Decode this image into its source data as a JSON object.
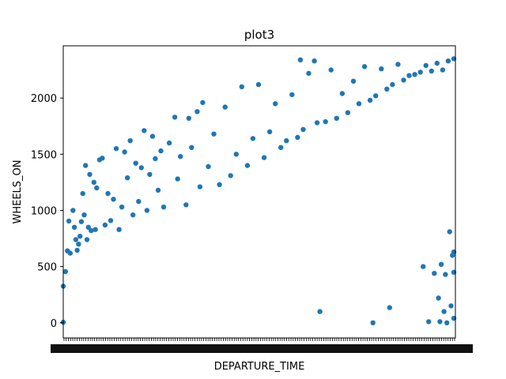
{
  "chart_data": {
    "type": "scatter",
    "title": "plot3",
    "xlabel": "DEPARTURE_TIME",
    "ylabel": "WHEELS_ON",
    "ylim": [
      -135,
      2465
    ],
    "y_ticks": [
      0,
      500,
      1000,
      1500,
      2000
    ],
    "x_range": [
      0,
      2359
    ],
    "x_tick_labels_illegible": true,
    "marker_color": "#1f77b4",
    "grid": false,
    "legend": "none",
    "points": [
      [
        0,
        5
      ],
      [
        0,
        325
      ],
      [
        8,
        455
      ],
      [
        15,
        640
      ],
      [
        20,
        905
      ],
      [
        25,
        620
      ],
      [
        35,
        1000
      ],
      [
        40,
        850
      ],
      [
        45,
        740
      ],
      [
        50,
        645
      ],
      [
        55,
        700
      ],
      [
        60,
        770
      ],
      [
        65,
        900
      ],
      [
        70,
        1150
      ],
      [
        75,
        960
      ],
      [
        80,
        1400
      ],
      [
        85,
        740
      ],
      [
        90,
        850
      ],
      [
        95,
        1320
      ],
      [
        100,
        820
      ],
      [
        110,
        1250
      ],
      [
        115,
        830
      ],
      [
        120,
        1200
      ],
      [
        130,
        1450
      ],
      [
        140,
        1465
      ],
      [
        150,
        870
      ],
      [
        160,
        1150
      ],
      [
        170,
        910
      ],
      [
        180,
        1100
      ],
      [
        190,
        1550
      ],
      [
        200,
        830
      ],
      [
        210,
        1030
      ],
      [
        220,
        1520
      ],
      [
        230,
        1290
      ],
      [
        240,
        1620
      ],
      [
        250,
        960
      ],
      [
        260,
        1420
      ],
      [
        270,
        1080
      ],
      [
        280,
        1380
      ],
      [
        290,
        1710
      ],
      [
        300,
        1000
      ],
      [
        310,
        1320
      ],
      [
        320,
        1660
      ],
      [
        330,
        1460
      ],
      [
        340,
        1180
      ],
      [
        350,
        1530
      ],
      [
        360,
        1030
      ],
      [
        380,
        1600
      ],
      [
        400,
        1830
      ],
      [
        410,
        1280
      ],
      [
        420,
        1480
      ],
      [
        440,
        1050
      ],
      [
        450,
        1820
      ],
      [
        460,
        1560
      ],
      [
        480,
        1880
      ],
      [
        490,
        1210
      ],
      [
        500,
        1960
      ],
      [
        520,
        1390
      ],
      [
        540,
        1680
      ],
      [
        560,
        1230
      ],
      [
        580,
        1920
      ],
      [
        600,
        1310
      ],
      [
        620,
        1500
      ],
      [
        640,
        2100
      ],
      [
        660,
        1400
      ],
      [
        680,
        1640
      ],
      [
        700,
        2120
      ],
      [
        720,
        1470
      ],
      [
        740,
        1700
      ],
      [
        760,
        1950
      ],
      [
        780,
        1560
      ],
      [
        800,
        1620
      ],
      [
        820,
        2030
      ],
      [
        840,
        1650
      ],
      [
        850,
        2340
      ],
      [
        860,
        1720
      ],
      [
        880,
        2220
      ],
      [
        900,
        2330
      ],
      [
        910,
        1780
      ],
      [
        920,
        100
      ],
      [
        940,
        1790
      ],
      [
        960,
        2250
      ],
      [
        980,
        1820
      ],
      [
        1000,
        2040
      ],
      [
        1020,
        1870
      ],
      [
        1040,
        2150
      ],
      [
        1060,
        1950
      ],
      [
        1080,
        2280
      ],
      [
        1100,
        1980
      ],
      [
        1110,
        0
      ],
      [
        1120,
        2020
      ],
      [
        1140,
        2260
      ],
      [
        1160,
        2080
      ],
      [
        1170,
        135
      ],
      [
        1180,
        2120
      ],
      [
        1200,
        2300
      ],
      [
        1220,
        2160
      ],
      [
        1240,
        2200
      ],
      [
        1260,
        2210
      ],
      [
        1280,
        2230
      ],
      [
        1290,
        500
      ],
      [
        1300,
        2290
      ],
      [
        1310,
        10
      ],
      [
        1320,
        2240
      ],
      [
        1330,
        440
      ],
      [
        1340,
        2310
      ],
      [
        1345,
        220
      ],
      [
        1350,
        10
      ],
      [
        1355,
        520
      ],
      [
        1360,
        2250
      ],
      [
        1365,
        100
      ],
      [
        1370,
        430
      ],
      [
        1375,
        0
      ],
      [
        1380,
        2330
      ],
      [
        1385,
        810
      ],
      [
        1390,
        150
      ],
      [
        1395,
        600
      ],
      [
        1400,
        2350
      ],
      [
        1400,
        40
      ],
      [
        1400,
        450
      ],
      [
        1400,
        630
      ]
    ]
  }
}
